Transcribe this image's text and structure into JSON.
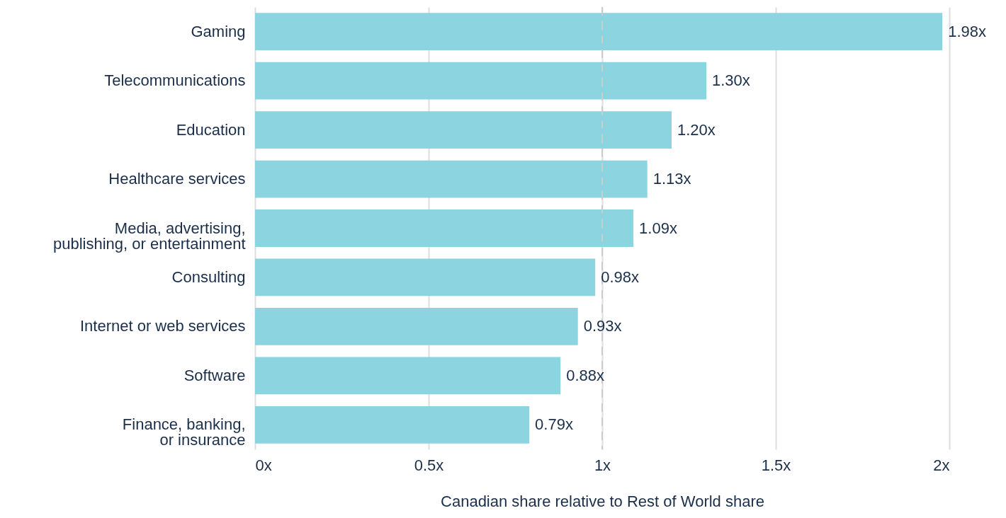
{
  "chart_data": {
    "type": "bar",
    "orientation": "horizontal",
    "categories": [
      "Gaming",
      "Telecommunications",
      "Education",
      "Healthcare services",
      "Media, advertising,\npublishing, or entertainment",
      "Consulting",
      "Internet or web services",
      "Software",
      "Finance, banking,\nor insurance"
    ],
    "values": [
      1.98,
      1.3,
      1.2,
      1.13,
      1.09,
      0.98,
      0.93,
      0.88,
      0.79
    ],
    "value_labels": [
      "1.98x",
      "1.30x",
      "1.20x",
      "1.13x",
      "1.09x",
      "0.98x",
      "0.93x",
      "0.88x",
      "0.79x"
    ],
    "color": "#8cd4df",
    "xlabel": "Canadian share relative to Rest of World share",
    "xlim": [
      0,
      2
    ],
    "xticks": [
      {
        "value": 0,
        "label": "0x"
      },
      {
        "value": 0.5,
        "label": "0.5x"
      },
      {
        "value": 1,
        "label": "1x"
      },
      {
        "value": 1.5,
        "label": "1.5x"
      },
      {
        "value": 2,
        "label": "2x"
      }
    ],
    "grid": "x",
    "ref_lines": [
      {
        "axis": "x",
        "value": 1,
        "color": "#cccccc",
        "line_style": "dashed"
      }
    ]
  }
}
